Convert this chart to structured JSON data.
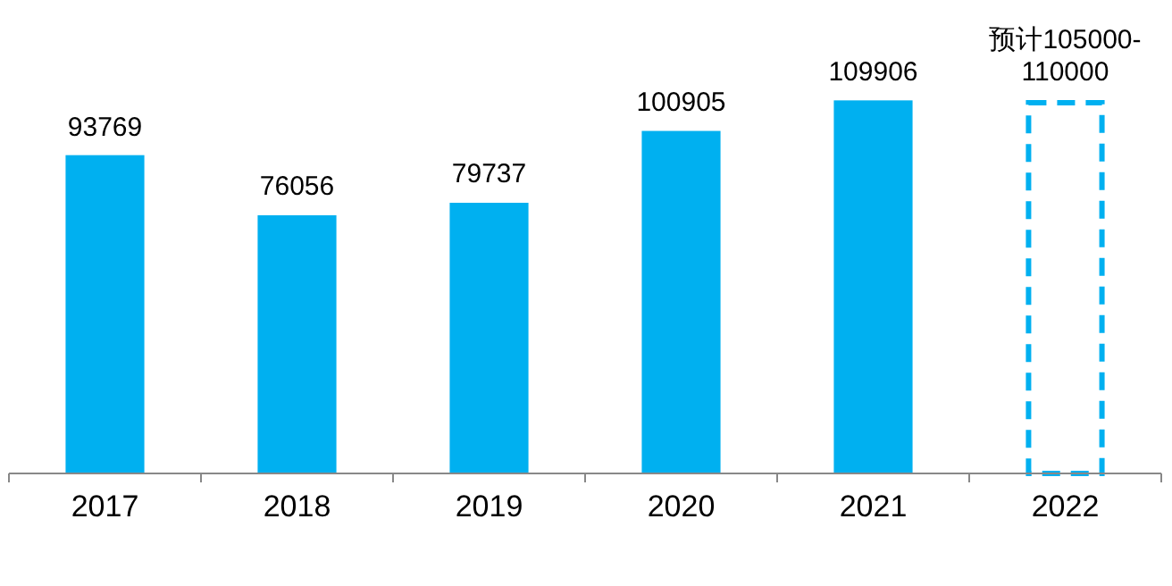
{
  "chart_data": {
    "type": "bar",
    "categories": [
      "2017",
      "2018",
      "2019",
      "2020",
      "2021",
      "2022"
    ],
    "series": [
      {
        "color": "#00b0f0",
        "values": [
          93769,
          76056,
          79737,
          100905,
          109906,
          null
        ],
        "value_labels": [
          "93769",
          "76056",
          "79737",
          "100905",
          "109906",
          null
        ]
      },
      {
        "color": "#00b0f0",
        "line_style": "dashed",
        "values": [
          null,
          null,
          null,
          null,
          null,
          110000
        ],
        "value_labels": [
          null,
          null,
          null,
          null,
          null,
          "预计105000-110000"
        ]
      }
    ],
    "data_labels": true
  }
}
